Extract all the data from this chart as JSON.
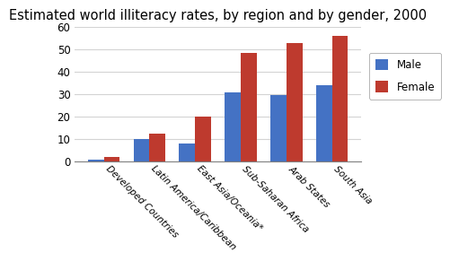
{
  "title": "Estimated world illiteracy rates, by region and by gender, 2000",
  "categories": [
    "Developed Countries",
    "Latin America/Caribbean",
    "East Asia/Oceania*",
    "Sub-Saharan Africa",
    "Arab States",
    "South Asia"
  ],
  "male_values": [
    1,
    10,
    8,
    31,
    29.5,
    34
  ],
  "female_values": [
    2,
    12.5,
    20,
    48.5,
    53,
    56
  ],
  "male_color": "#4472C4",
  "female_color": "#BE3A2E",
  "ylim": [
    0,
    60
  ],
  "yticks": [
    0,
    10,
    20,
    30,
    40,
    50,
    60
  ],
  "legend_labels": [
    "Male",
    "Female"
  ],
  "bar_width": 0.35,
  "title_fontsize": 10.5
}
